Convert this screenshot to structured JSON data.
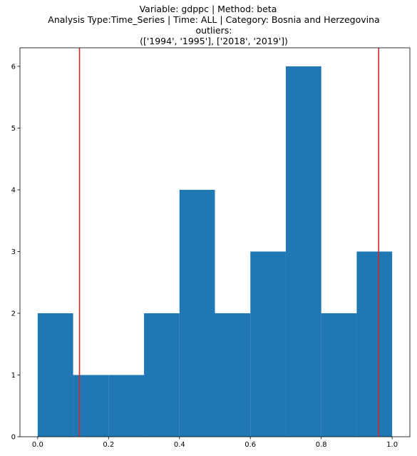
{
  "chart_data": {
    "type": "bar",
    "title_lines": [
      "Variable: gdppc | Method: beta",
      "Analysis Type:Time_Series | Time: ALL | Category: Bosnia and Herzegovina",
      "outliers:",
      "(['1994', '1995'], ['2018', '2019'])"
    ],
    "bins": [
      {
        "x0": 0.0,
        "x1": 0.1,
        "count": 2
      },
      {
        "x0": 0.1,
        "x1": 0.2,
        "count": 1
      },
      {
        "x0": 0.2,
        "x1": 0.3,
        "count": 1
      },
      {
        "x0": 0.3,
        "x1": 0.4,
        "count": 2
      },
      {
        "x0": 0.4,
        "x1": 0.5,
        "count": 4
      },
      {
        "x0": 0.5,
        "x1": 0.6,
        "count": 2
      },
      {
        "x0": 0.6,
        "x1": 0.7,
        "count": 3
      },
      {
        "x0": 0.7,
        "x1": 0.8,
        "count": 6
      },
      {
        "x0": 0.8,
        "x1": 0.9,
        "count": 2
      },
      {
        "x0": 0.9,
        "x1": 1.0,
        "count": 3
      }
    ],
    "threshold_lines": [
      0.118,
      0.962
    ],
    "xlim": [
      -0.05,
      1.05
    ],
    "ylim": [
      0,
      6.3
    ],
    "xticks": [
      0.0,
      0.2,
      0.4,
      0.6,
      0.8,
      1.0
    ],
    "xtick_labels": [
      "0.0",
      "0.2",
      "0.4",
      "0.6",
      "0.8",
      "1.0"
    ],
    "yticks": [
      0,
      1,
      2,
      3,
      4,
      5,
      6
    ],
    "ytick_labels": [
      "0",
      "1",
      "2",
      "3",
      "4",
      "5",
      "6"
    ],
    "xlabel": "",
    "ylabel": "",
    "grid": false,
    "colors": {
      "bar": "#1f77b4",
      "threshold": "#d62728",
      "axis": "#000000",
      "background": "#ffffff"
    }
  }
}
